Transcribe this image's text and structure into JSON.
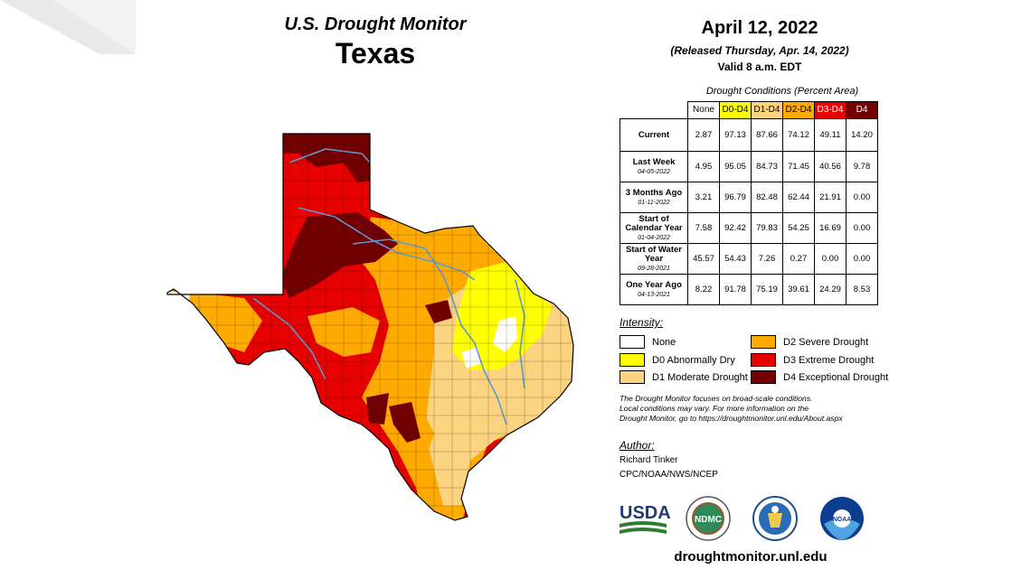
{
  "header": {
    "title_line1": "U.S. Drought Monitor",
    "title_line2": "Texas"
  },
  "dates": {
    "map_date": "April 12, 2022",
    "released": "(Released Thursday, Apr. 14, 2022)",
    "valid": "Valid 8 a.m. EDT"
  },
  "table": {
    "caption": "Drought Conditions (Percent Area)",
    "columns": [
      {
        "label": "None",
        "color": "#ffffff",
        "text_color": "#000000"
      },
      {
        "label": "D0-D4",
        "color": "#ffff00",
        "text_color": "#000000"
      },
      {
        "label": "D1-D4",
        "color": "#fcd37f",
        "text_color": "#000000"
      },
      {
        "label": "D2-D4",
        "color": "#ffaa00",
        "text_color": "#000000"
      },
      {
        "label": "D3-D4",
        "color": "#e60000",
        "text_color": "#ffffff"
      },
      {
        "label": "D4",
        "color": "#730000",
        "text_color": "#ffffff"
      }
    ],
    "rows": [
      {
        "label": "Current",
        "sub": "",
        "values": [
          "2.87",
          "97.13",
          "87.66",
          "74.12",
          "49.11",
          "14.20"
        ]
      },
      {
        "label": "Last Week",
        "sub": "04-05-2022",
        "values": [
          "4.95",
          "95.05",
          "84.73",
          "71.45",
          "40.56",
          "9.78"
        ]
      },
      {
        "label": "3 Months Ago",
        "sub": "01-11-2022",
        "values": [
          "3.21",
          "96.79",
          "82.48",
          "62.44",
          "21.91",
          "0.00"
        ]
      },
      {
        "label": "Start of Calendar Year",
        "sub": "01-04-2022",
        "values": [
          "7.58",
          "92.42",
          "79.83",
          "54.25",
          "16.69",
          "0.00"
        ]
      },
      {
        "label": "Start of Water Year",
        "sub": "09-28-2021",
        "values": [
          "45.57",
          "54.43",
          "7.26",
          "0.27",
          "0.00",
          "0.00"
        ]
      },
      {
        "label": "One Year Ago",
        "sub": "04-13-2021",
        "values": [
          "8.22",
          "91.78",
          "75.19",
          "39.61",
          "24.29",
          "8.53"
        ]
      }
    ]
  },
  "legend": {
    "title": "Intensity:",
    "items": [
      {
        "label": "None",
        "color": "#ffffff"
      },
      {
        "label": "D0 Abnormally Dry",
        "color": "#ffff00"
      },
      {
        "label": "D1 Moderate Drought",
        "color": "#fcd37f"
      },
      {
        "label": "D2 Severe Drought",
        "color": "#ffaa00"
      },
      {
        "label": "D3 Extreme Drought",
        "color": "#e60000"
      },
      {
        "label": "D4 Exceptional Drought",
        "color": "#730000"
      }
    ]
  },
  "note": {
    "line1": "The Drought Monitor focuses on broad-scale conditions.",
    "line2": "Local conditions may vary. For more information on the",
    "line3": "Drought Monitor, go to https://droughtmonitor.unl.edu/About.aspx"
  },
  "author": {
    "title": "Author:",
    "name": "Richard Tinker",
    "org": "CPC/NOAA/NWS/NCEP"
  },
  "logos": {
    "usda": "USDA",
    "ndmc": "NDMC",
    "noaa": "NOAA"
  },
  "footer": {
    "url": "droughtmonitor.unl.edu"
  },
  "map_colors": {
    "none": "#ffffff",
    "d0": "#ffff00",
    "d1": "#fcd37f",
    "d2": "#ffaa00",
    "d3": "#e60000",
    "d4": "#730000",
    "river": "#5b9bd5"
  }
}
